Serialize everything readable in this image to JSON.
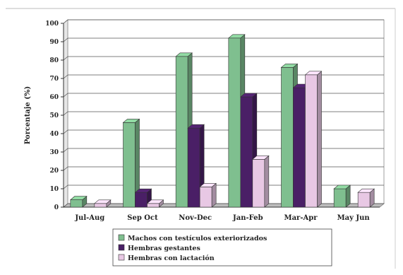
{
  "chart_data": {
    "type": "bar",
    "categories": [
      "Jul-Aug",
      "Sep Oct",
      "Nov-Dec",
      "Jan-Feb",
      "Mar-Apr",
      "May Jun"
    ],
    "series": [
      {
        "name": "Machos con testículos exteriorizados",
        "color": "#7fbf8f",
        "values": [
          4,
          46,
          82,
          92,
          76,
          10
        ]
      },
      {
        "name": "Hembras gestantes",
        "color": "#4a1f66",
        "values": [
          0,
          8,
          43,
          60,
          65,
          0
        ]
      },
      {
        "name": "Hembras con lactación",
        "color": "#e8c8e4",
        "values": [
          2,
          2,
          11,
          26,
          72,
          8
        ]
      }
    ],
    "ylabel": "Porcentaje (%)",
    "xlabel": "",
    "ylim": [
      0,
      100
    ],
    "yticks": [
      0,
      10,
      20,
      30,
      40,
      50,
      60,
      70,
      80,
      90,
      100
    ],
    "grid": true,
    "legend_position": "bottom"
  }
}
